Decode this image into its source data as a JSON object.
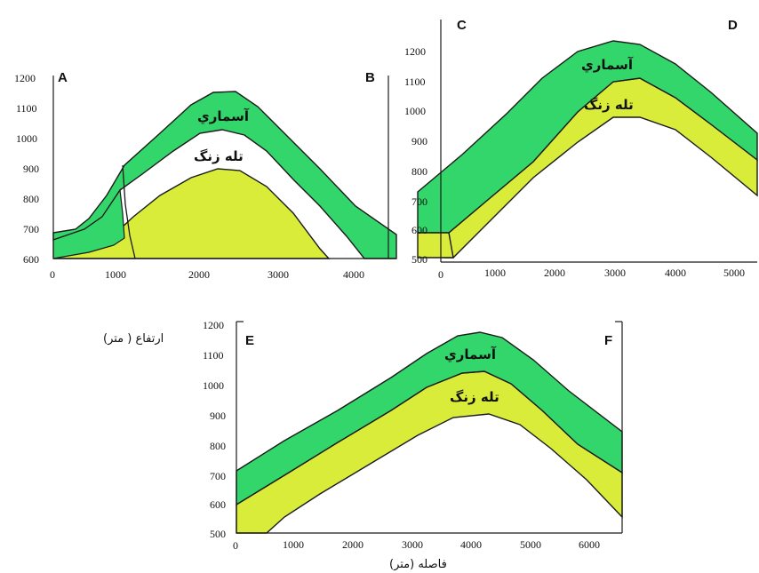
{
  "colors": {
    "upper_unit": "#33d66a",
    "lower_unit": "#d9ec3a",
    "outline": "#1a1a1a",
    "background": "#ffffff"
  },
  "units": {
    "upper": "آسماري",
    "lower": "تله زنگ"
  },
  "axis_titles": {
    "y": "ارتفاع ( متر)",
    "x": "فاصله (متر)"
  },
  "panels": [
    {
      "id": "AB",
      "corner_left": "A",
      "corner_right": "B",
      "x_ticks": [
        "0",
        "1000",
        "2000",
        "3000",
        "4000"
      ],
      "y_ticks": [
        "600",
        "700",
        "800",
        "900",
        "1000",
        "1100",
        "1200"
      ],
      "x_range": [
        0,
        4600
      ],
      "y_range": [
        600,
        1200
      ]
    },
    {
      "id": "CD",
      "corner_left": "C",
      "corner_right": "D",
      "x_ticks": [
        "0",
        "1000",
        "2000",
        "3000",
        "4000",
        "5000"
      ],
      "y_ticks": [
        "500",
        "600",
        "700",
        "800",
        "900",
        "1000",
        "1100",
        "1200"
      ],
      "x_range": [
        0,
        5300
      ],
      "y_range": [
        500,
        1250
      ]
    },
    {
      "id": "EF",
      "corner_left": "E",
      "corner_right": "F",
      "x_ticks": [
        "0",
        "1000",
        "2000",
        "3000",
        "4000",
        "5000",
        "6000"
      ],
      "y_ticks": [
        "500",
        "600",
        "700",
        "800",
        "900",
        "1000",
        "1100",
        "1200"
      ],
      "x_range": [
        0,
        6400
      ],
      "y_range": [
        500,
        1200
      ]
    }
  ]
}
